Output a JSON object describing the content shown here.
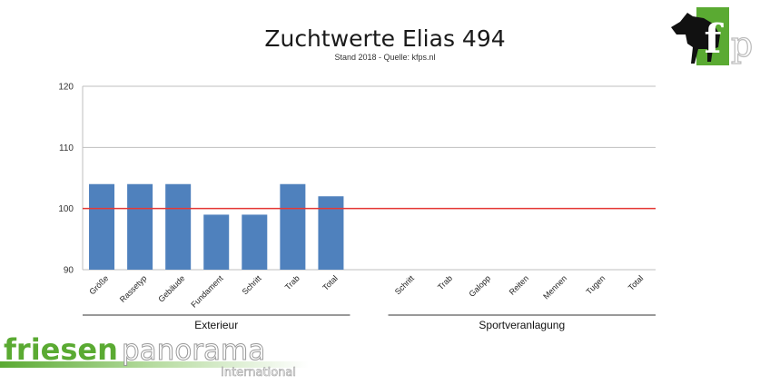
{
  "chart_data": {
    "type": "bar",
    "title": "Zuchtwerte Elias 494",
    "subtitle": "Stand 2018 - Quelle: kfps.nl",
    "ylim": [
      90,
      120
    ],
    "yticks": [
      90,
      100,
      110,
      120
    ],
    "reference_line": {
      "value": 100,
      "color": "#e53935"
    },
    "bar_color": "#4f81bd",
    "grid": true,
    "categories": [
      "Größe",
      "Rassetyp",
      "Gebäude",
      "Fundament",
      "Schritt",
      "Trab",
      "Total",
      "Schritt",
      "Trab",
      "Galopp",
      "Reiten",
      "Mennen",
      "Tugen",
      "Total"
    ],
    "values": [
      104,
      104,
      104,
      99,
      99,
      104,
      102,
      null,
      null,
      null,
      null,
      null,
      null,
      null
    ],
    "groups": [
      {
        "label": "Exterieur",
        "category_range": [
          0,
          6
        ]
      },
      {
        "label": "Sportveranlagung",
        "category_range": [
          7,
          13
        ]
      }
    ]
  },
  "logos": {
    "corner_logo": {
      "text": "kfp",
      "icon": "horse-silhouette-icon",
      "color": "#5aaa32"
    },
    "brand_logo": {
      "word1": "friesen",
      "word2": "panorama",
      "sub": "International",
      "color": "#5aaa32"
    }
  }
}
